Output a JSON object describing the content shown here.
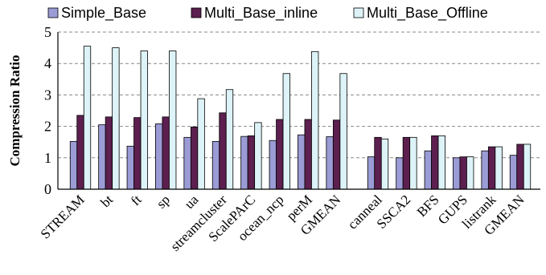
{
  "chart_data": {
    "type": "bar",
    "title": "",
    "xlabel": "",
    "ylabel": "Compression Ratio",
    "ylim": [
      0,
      5
    ],
    "yticks": [
      "0",
      "1",
      "2",
      "3",
      "4",
      "5"
    ],
    "grid": "horizontal dashed",
    "legend_position": "top",
    "groups": [
      {
        "categories": [
          "STREAM",
          "bt",
          "ft",
          "sp",
          "ua",
          "streamcluster",
          "ScalePArC",
          "ocean_ncp",
          "perM",
          "GMEAN"
        ]
      },
      {
        "categories": [
          "canneal",
          "SSCA2",
          "BFS",
          "GUPS",
          "listrank",
          "GMEAN"
        ]
      }
    ],
    "categories": [
      "STREAM",
      "bt",
      "ft",
      "sp",
      "ua",
      "streamcluster",
      "ScalePArC",
      "ocean_ncp",
      "perM",
      "GMEAN",
      "canneal",
      "SSCA2",
      "BFS",
      "GUPS",
      "listrank",
      "GMEAN"
    ],
    "series": [
      {
        "name": "Simple_Base",
        "color": "#9b9bd6",
        "values": [
          1.52,
          2.05,
          1.37,
          2.08,
          1.65,
          1.52,
          1.68,
          1.55,
          1.73,
          1.67,
          1.03,
          1.0,
          1.22,
          1.0,
          1.22,
          1.08
        ]
      },
      {
        "name": "Multi_Base_inline",
        "color": "#5c1f4f",
        "values": [
          2.35,
          2.3,
          2.28,
          2.3,
          1.98,
          2.43,
          1.7,
          2.22,
          2.22,
          2.2,
          1.65,
          1.65,
          1.7,
          1.03,
          1.35,
          1.43
        ]
      },
      {
        "name": "Multi_Base_Offline",
        "color": "#ddf3f8",
        "values": [
          4.55,
          4.5,
          4.4,
          4.4,
          2.88,
          3.17,
          2.12,
          3.68,
          4.38,
          3.68,
          1.6,
          1.65,
          1.7,
          1.03,
          1.35,
          1.43
        ]
      }
    ]
  }
}
